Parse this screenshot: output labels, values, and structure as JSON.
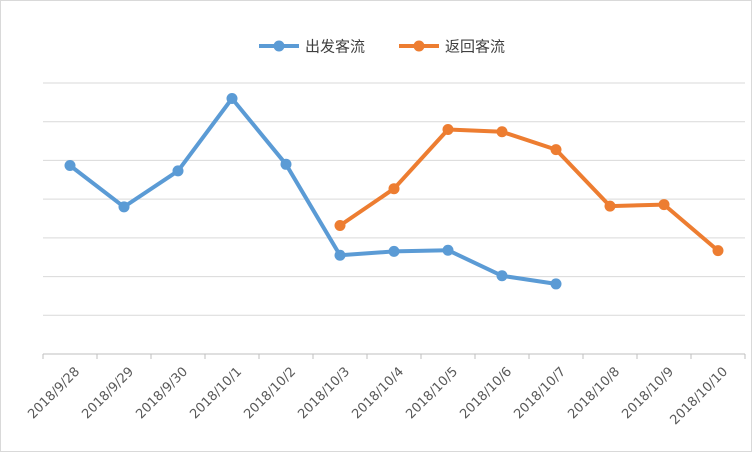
{
  "chart_data": {
    "type": "line",
    "title": "",
    "xlabel": "",
    "ylabel": "",
    "categories": [
      "2018/9/28",
      "2018/9/29",
      "2018/9/30",
      "2018/10/1",
      "2018/10/2",
      "2018/10/3",
      "2018/10/4",
      "2018/10/5",
      "2018/10/6",
      "2018/10/7",
      "2018/10/8",
      "2018/10/9",
      "2018/10/10"
    ],
    "ylim": [
      0,
      7
    ],
    "grid": true,
    "y_tick_labels_visible": false,
    "legend_position": "top-center",
    "series": [
      {
        "name": "出发客流",
        "color": "#5b9bd5",
        "values": [
          4.87,
          3.8,
          4.73,
          6.6,
          4.9,
          2.55,
          2.65,
          2.68,
          2.02,
          1.81,
          null,
          null,
          null
        ]
      },
      {
        "name": "返回客流",
        "color": "#ed7d31",
        "values": [
          null,
          null,
          null,
          null,
          null,
          3.32,
          4.27,
          5.8,
          5.74,
          5.28,
          3.82,
          3.86,
          2.67
        ]
      }
    ]
  }
}
